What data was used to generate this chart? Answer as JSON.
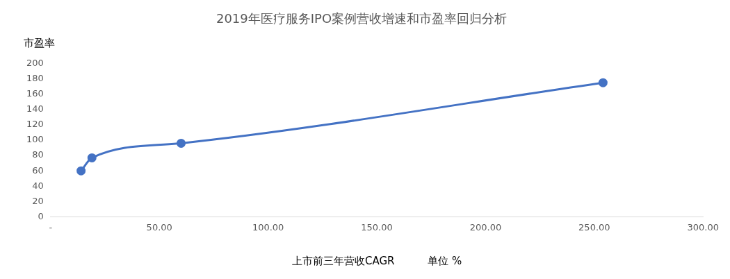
{
  "chart_data": {
    "type": "line",
    "title": "2019年医疗服务IPO案例营收增速和市盈率回归分析",
    "xlabel": "上市前三年营收CAGR          单位 %",
    "ylabel": "市盈率",
    "x": [
      14,
      19,
      60,
      254
    ],
    "series": [
      {
        "color": "#4472c4",
        "values": [
          60,
          77,
          96,
          175
        ]
      }
    ],
    "xlim": [
      0,
      300
    ],
    "xticks": [
      {
        "value": 0,
        "label": "-"
      },
      {
        "value": 50,
        "label": "50.00"
      },
      {
        "value": 100,
        "label": "100.00"
      },
      {
        "value": 150,
        "label": "150.00"
      },
      {
        "value": 200,
        "label": "200.00"
      },
      {
        "value": 250,
        "label": "250.00"
      },
      {
        "value": 300,
        "label": "300.00"
      }
    ],
    "ylim": [
      0,
      200
    ],
    "yticks": [
      0,
      20,
      40,
      60,
      80,
      100,
      120,
      140,
      160,
      180,
      200
    ],
    "grid": false,
    "legend": false,
    "marker": "circle",
    "line_style": "solid"
  }
}
